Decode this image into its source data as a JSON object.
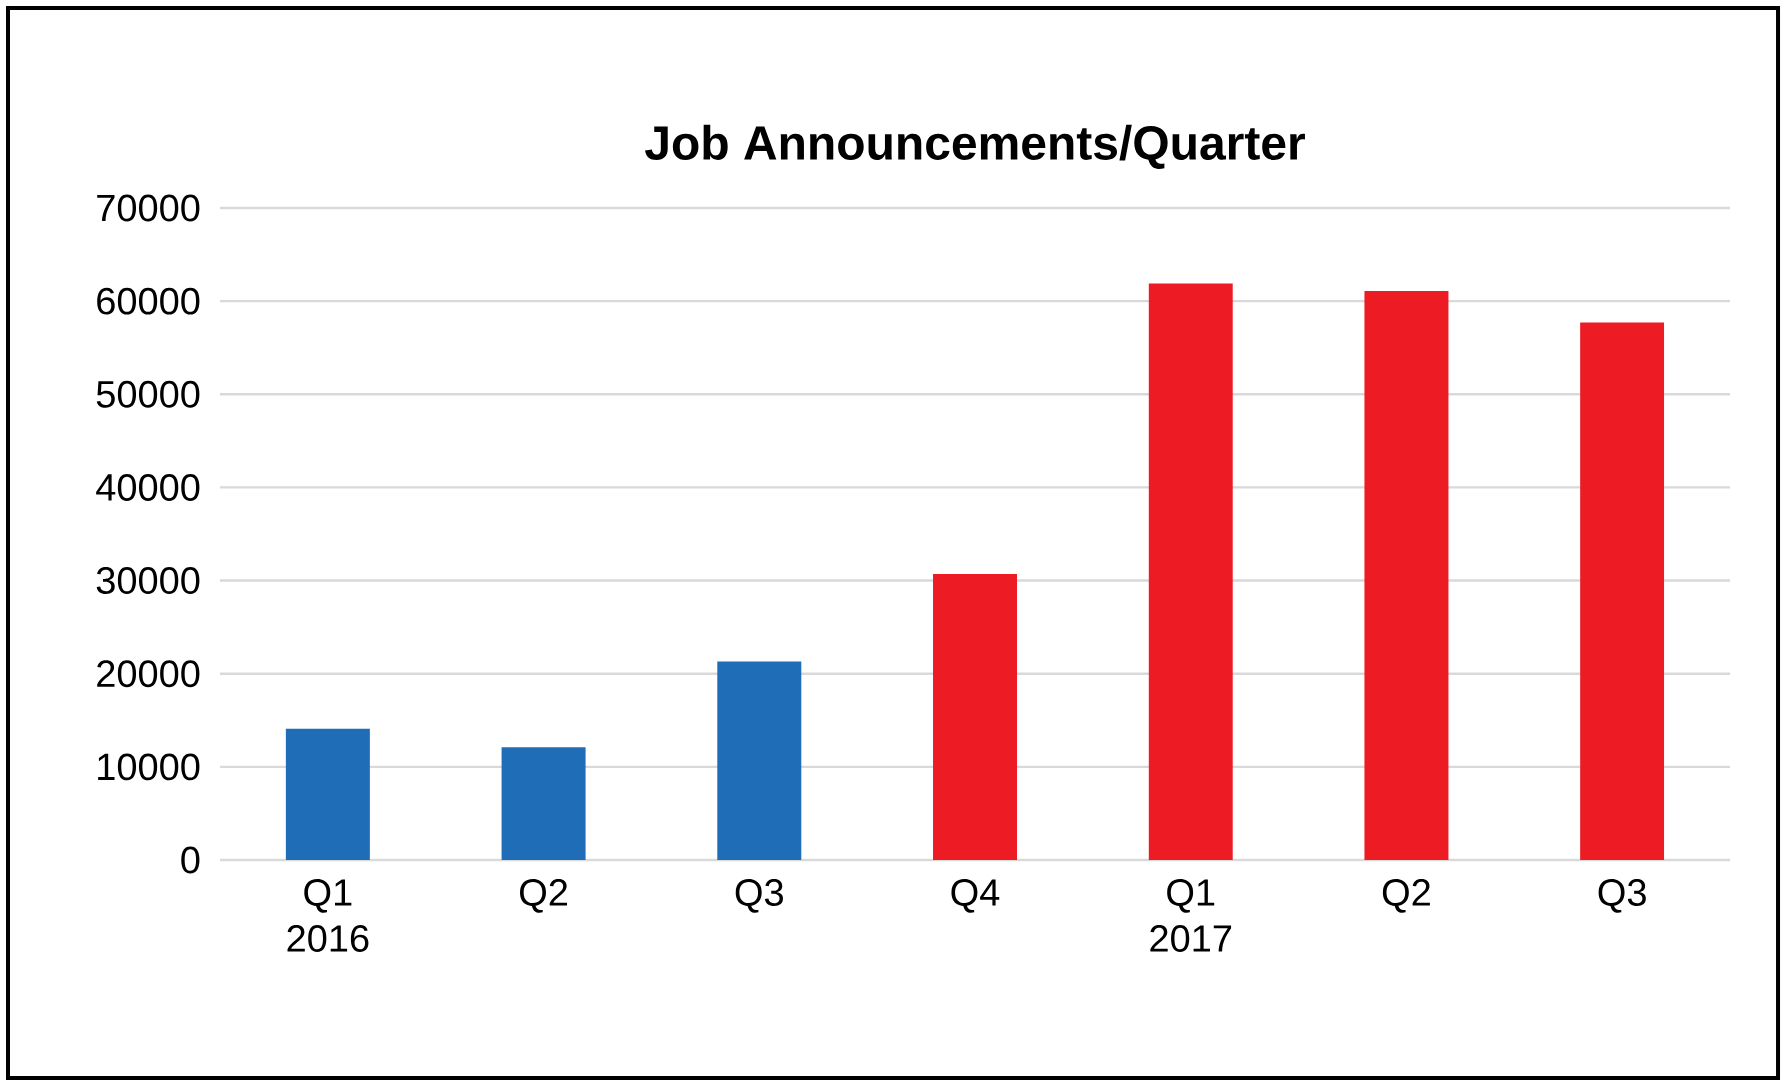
{
  "chart_data": {
    "type": "bar",
    "title": "Job Announcements/Quarter",
    "categories": [
      "Q1 2016",
      "Q2",
      "Q3",
      "Q4",
      "Q1 2017",
      "Q2",
      "Q3"
    ],
    "values": [
      14100,
      12100,
      21300,
      30700,
      61900,
      61100,
      57700
    ],
    "colors": [
      "#1f6db6",
      "#1f6db6",
      "#1f6db6",
      "#ed1c24",
      "#ed1c24",
      "#ed1c24",
      "#ed1c24"
    ],
    "ylim": [
      0,
      70000
    ],
    "yticks": [
      0,
      10000,
      20000,
      30000,
      40000,
      50000,
      60000,
      70000
    ],
    "grid": "y"
  }
}
